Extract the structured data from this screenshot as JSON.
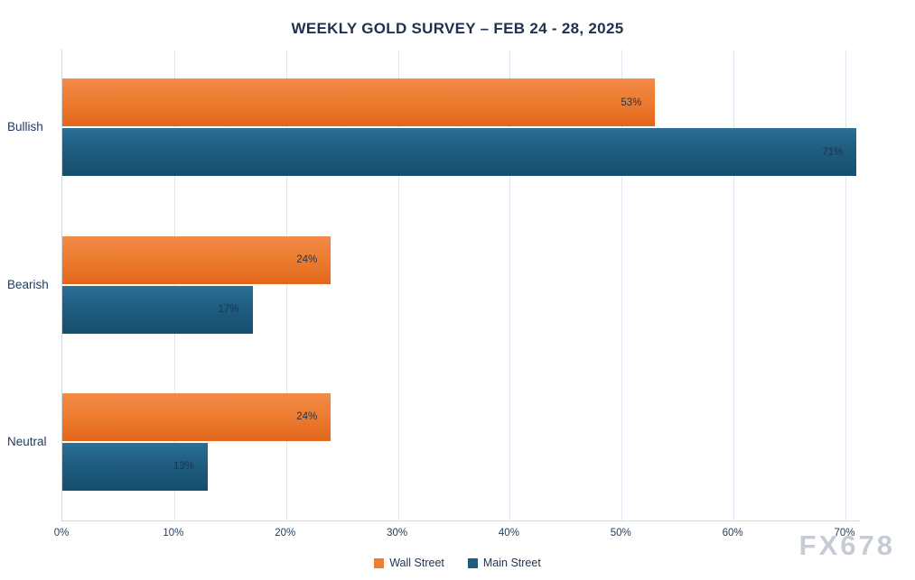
{
  "title": "WEEKLY GOLD SURVEY – FEB 24 - 28, 2025",
  "watermark": "FX678",
  "colors": {
    "wall_street": "#ED7D31",
    "main_street": "#1F5C7F",
    "title_text": "#1F3050",
    "grid": "#DDE6F2",
    "axis": "#CFD6DE",
    "label_text": "#1E3A5F",
    "watermark": "#C7CCD4"
  },
  "chart_data": {
    "type": "bar",
    "orientation": "horizontal",
    "title": "WEEKLY GOLD SURVEY – FEB 24 - 28, 2025",
    "categories": [
      "Bullish",
      "Bearish",
      "Neutral"
    ],
    "series": [
      {
        "name": "Wall Street",
        "color": "#ED7D31",
        "values": [
          53,
          24,
          24
        ]
      },
      {
        "name": "Main Street",
        "color": "#1F5C7F",
        "values": [
          71,
          17,
          13
        ]
      }
    ],
    "value_suffix": "%",
    "xlim": [
      0,
      70
    ],
    "x_ticks": [
      "0%",
      "10%",
      "20%",
      "30%",
      "40%",
      "50%",
      "60%",
      "70%"
    ],
    "grid": true,
    "legend_position": "bottom"
  }
}
